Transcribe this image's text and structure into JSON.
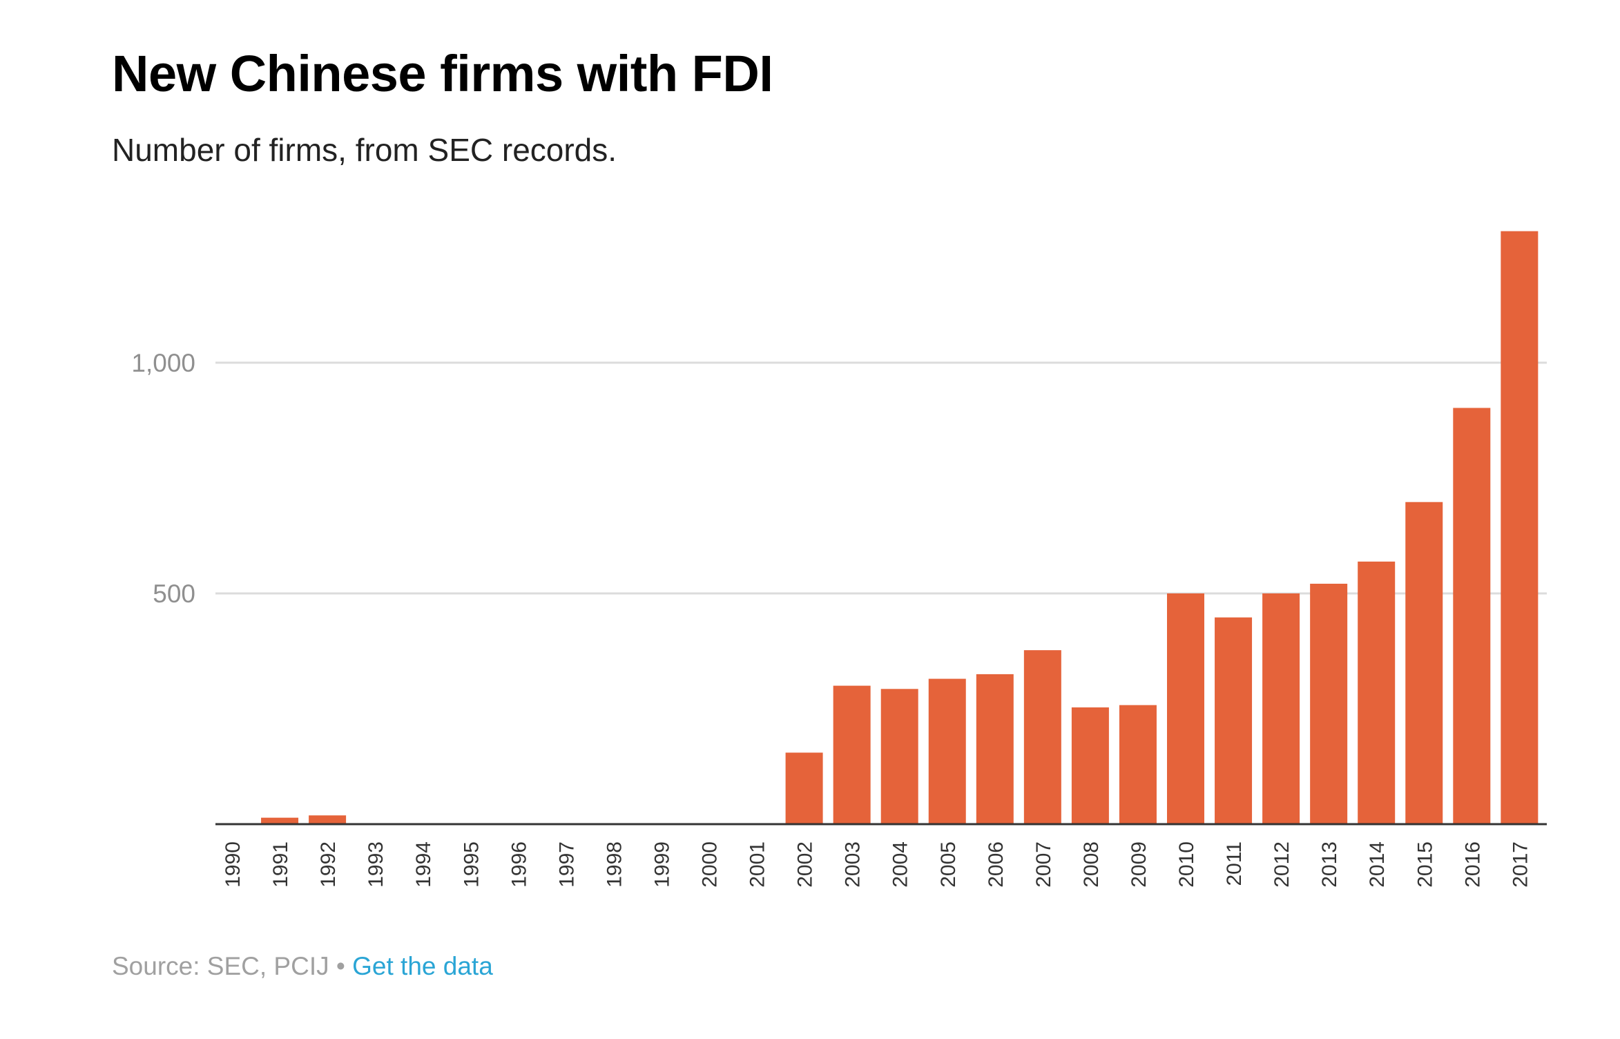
{
  "chart_data": {
    "type": "bar",
    "title": "New Chinese firms with FDI",
    "subtitle": "Number of firms, from SEC records.",
    "xlabel": "",
    "ylabel": "",
    "categories": [
      "1990",
      "1991",
      "1992",
      "1993",
      "1994",
      "1995",
      "1996",
      "1997",
      "1998",
      "1999",
      "2000",
      "2001",
      "2002",
      "2003",
      "2004",
      "2005",
      "2006",
      "2007",
      "2008",
      "2009",
      "2010",
      "2011",
      "2012",
      "2013",
      "2014",
      "2015",
      "2016",
      "2017"
    ],
    "values": [
      0,
      14,
      19,
      0,
      0,
      0,
      0,
      0,
      0,
      0,
      0,
      0,
      155,
      300,
      293,
      315,
      325,
      377,
      253,
      258,
      500,
      448,
      500,
      521,
      569,
      698,
      902,
      1285
    ],
    "y_ticks": [
      500,
      1000
    ],
    "y_tick_labels": [
      "500",
      "1,000"
    ],
    "ylim": [
      0,
      1300
    ],
    "grid": true,
    "legend": "none",
    "bar_color": "#e5633a"
  },
  "footer": {
    "source_text": "Source: SEC, PCIJ",
    "separator": " • ",
    "link_text": "Get the data"
  }
}
